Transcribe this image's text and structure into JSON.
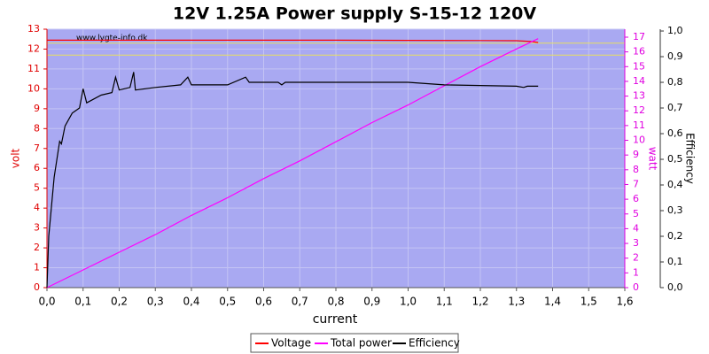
{
  "chart_data": {
    "type": "line",
    "title": "12V 1.25A Power supply S-15-12 120V",
    "watermark": "www.lygte-info.dk",
    "xlabel": "current",
    "ylabel": "volt",
    "y2label": "watt",
    "y3label": "Efficiency",
    "xlim": [
      0,
      1.6
    ],
    "xticks": [
      {
        "value": 0,
        "label": "0,0"
      },
      {
        "value": 0.1,
        "label": "0,1"
      },
      {
        "value": 0.2,
        "label": "0,2"
      },
      {
        "value": 0.3,
        "label": "0,3"
      },
      {
        "value": 0.4,
        "label": "0,4"
      },
      {
        "value": 0.5,
        "label": "0,5"
      },
      {
        "value": 0.6,
        "label": "0,6"
      },
      {
        "value": 0.7,
        "label": "0,7"
      },
      {
        "value": 0.8,
        "label": "0,8"
      },
      {
        "value": 0.9,
        "label": "0,9"
      },
      {
        "value": 1.0,
        "label": "1,0"
      },
      {
        "value": 1.1,
        "label": "1,1"
      },
      {
        "value": 1.2,
        "label": "1,2"
      },
      {
        "value": 1.3,
        "label": "1,3"
      },
      {
        "value": 1.4,
        "label": "1,4"
      },
      {
        "value": 1.5,
        "label": "1,5"
      },
      {
        "value": 1.6,
        "label": "1,6"
      }
    ],
    "ylim": [
      0,
      13
    ],
    "yticks": [
      0,
      1,
      2,
      3,
      4,
      5,
      6,
      7,
      8,
      9,
      10,
      11,
      12,
      13
    ],
    "y2lim": [
      0,
      17.54
    ],
    "y2ticks": [
      0,
      1,
      2,
      3,
      4,
      5,
      6,
      7,
      8,
      9,
      10,
      11,
      12,
      13,
      14,
      15,
      16,
      17
    ],
    "y3lim": [
      0,
      1.007
    ],
    "y3ticks": [
      {
        "value": 0,
        "label": "0,0"
      },
      {
        "value": 0.1,
        "label": "0,1"
      },
      {
        "value": 0.2,
        "label": "0,2"
      },
      {
        "value": 0.3,
        "label": "0,3"
      },
      {
        "value": 0.4,
        "label": "0,4"
      },
      {
        "value": 0.5,
        "label": "0,5"
      },
      {
        "value": 0.6,
        "label": "0,6"
      },
      {
        "value": 0.7,
        "label": "0,7"
      },
      {
        "value": 0.8,
        "label": "0,8"
      },
      {
        "value": 0.9,
        "label": "0,9"
      },
      {
        "value": 1.0,
        "label": "1,0"
      }
    ],
    "grid": true,
    "hlines": {
      "color": "#e8e060",
      "values": [
        12.3,
        11.7
      ]
    },
    "series": [
      {
        "name": "Voltage",
        "color": "#ff0000",
        "axis": "y",
        "x": [
          0,
          0.2,
          0.4,
          0.6,
          0.8,
          1.0,
          1.2,
          1.3,
          1.34,
          1.36
        ],
        "values": [
          12.45,
          12.45,
          12.45,
          12.45,
          12.45,
          12.44,
          12.43,
          12.42,
          12.38,
          12.33
        ]
      },
      {
        "name": "Total power",
        "color": "#ff00ff",
        "axis": "y2",
        "x": [
          0,
          0.1,
          0.2,
          0.3,
          0.4,
          0.5,
          0.6,
          0.7,
          0.8,
          0.9,
          1.0,
          1.1,
          1.2,
          1.3,
          1.36
        ],
        "values": [
          0,
          1.2,
          2.4,
          3.6,
          4.9,
          6.1,
          7.4,
          8.6,
          9.9,
          11.2,
          12.4,
          13.7,
          15.0,
          16.2,
          16.9
        ]
      },
      {
        "name": "Efficiency",
        "color": "#000000",
        "axis": "y3",
        "x": [
          0,
          0.005,
          0.02,
          0.035,
          0.04,
          0.05,
          0.07,
          0.09,
          0.1,
          0.11,
          0.15,
          0.18,
          0.19,
          0.2,
          0.23,
          0.24,
          0.245,
          0.3,
          0.37,
          0.39,
          0.4,
          0.5,
          0.55,
          0.56,
          0.6,
          0.64,
          0.65,
          0.66,
          1.0,
          1.1,
          1.3,
          1.32,
          1.33,
          1.36
        ],
        "values": [
          0,
          0.2,
          0.43,
          0.57,
          0.56,
          0.63,
          0.68,
          0.7,
          0.775,
          0.72,
          0.75,
          0.76,
          0.82,
          0.77,
          0.78,
          0.84,
          0.77,
          0.78,
          0.79,
          0.82,
          0.79,
          0.79,
          0.82,
          0.8,
          0.8,
          0.8,
          0.79,
          0.8,
          0.8,
          0.79,
          0.785,
          0.78,
          0.785,
          0.785
        ]
      }
    ]
  }
}
